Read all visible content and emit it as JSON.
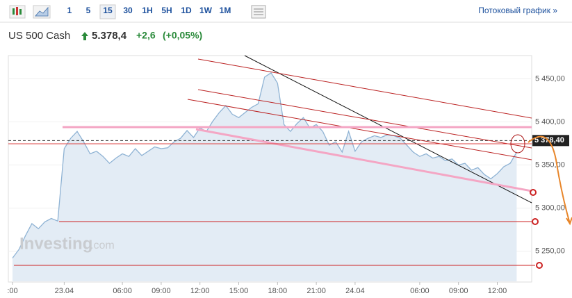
{
  "toolbar": {
    "intervals": [
      "1",
      "5",
      "15",
      "30",
      "1H",
      "5H",
      "1D",
      "1W",
      "1M"
    ],
    "selected": "15",
    "stream_link": "Потоковый график »"
  },
  "instrument": {
    "name": "US 500 Cash",
    "price": "5.378,4",
    "change": "+2,6",
    "change_pct": "(+0,05%)"
  },
  "watermark": {
    "brand": "Investing",
    "suffix": ".com"
  },
  "chart_data": {
    "type": "area",
    "color": "#8fb3d4",
    "fill": "#e3ecf5",
    "categories": [
      ":00",
      null,
      null,
      null,
      null,
      null,
      null,
      null,
      "23.04",
      null,
      null,
      null,
      null,
      null,
      null,
      null,
      null,
      "06:00",
      null,
      null,
      null,
      null,
      null,
      "09:00",
      null,
      null,
      null,
      null,
      null,
      "12:00",
      null,
      null,
      null,
      null,
      null,
      "15:00",
      null,
      null,
      null,
      null,
      null,
      "18:00",
      null,
      null,
      null,
      null,
      null,
      "21:00",
      null,
      null,
      null,
      null,
      null,
      "24.04",
      null,
      null,
      null,
      null,
      null,
      null,
      null,
      null,
      null,
      "06:00",
      null,
      null,
      null,
      null,
      null,
      "09:00",
      null,
      null,
      null,
      null,
      null,
      "12:00",
      null,
      null,
      null
    ],
    "values": [
      5242,
      5252,
      5268,
      5282,
      5276,
      5284,
      5288,
      5285,
      5369,
      5381,
      5389,
      5377,
      5363,
      5366,
      5360,
      5352,
      5358,
      5363,
      5360,
      5369,
      5361,
      5366,
      5371,
      5369,
      5370,
      5377,
      5381,
      5390,
      5382,
      5393,
      5389,
      5401,
      5411,
      5419,
      5409,
      5405,
      5411,
      5417,
      5421,
      5452,
      5457,
      5445,
      5397,
      5389,
      5398,
      5405,
      5393,
      5397,
      5389,
      5373,
      5377,
      5365,
      5389,
      5366,
      5377,
      5381,
      5384,
      5382,
      5385,
      5384,
      5381,
      5373,
      5365,
      5360,
      5363,
      5358,
      5360,
      5355,
      5357,
      5350,
      5352,
      5344,
      5347,
      5339,
      5334,
      5340,
      5348,
      5352,
      5365
    ],
    "ylim": [
      5215,
      5473
    ],
    "yticks": [
      {
        "value": 5250,
        "label": "5 250,00"
      },
      {
        "value": 5300,
        "label": "5 300,00"
      },
      {
        "value": 5350,
        "label": "5 350,00"
      },
      {
        "value": 5400,
        "label": "5 400,00"
      },
      {
        "value": 5450,
        "label": "5 450,00"
      }
    ],
    "current_price": {
      "value": 5378.4,
      "label": "5 378,40"
    }
  }
}
